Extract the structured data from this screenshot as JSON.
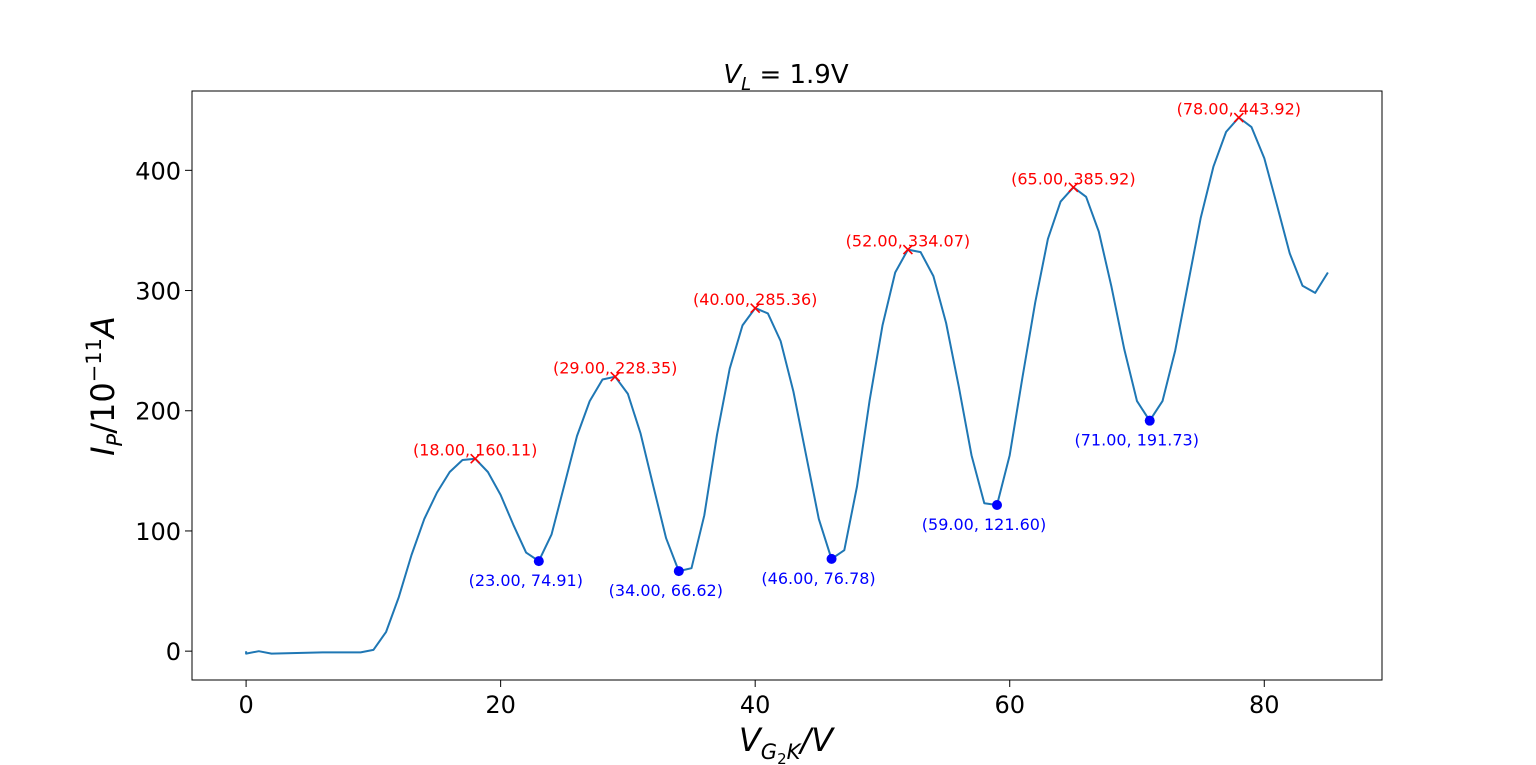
{
  "chart_data": {
    "type": "line",
    "title": "V_L = 1.9V",
    "title_parts": {
      "main": "V",
      "sub": "L",
      "rest": " = 1.9V"
    },
    "xlabel": "V_{G_2K}/V",
    "xlabel_parts": {
      "main": "V",
      "sub": "G",
      "subsub": "2",
      "sub2": "K",
      "rest": "/V"
    },
    "ylabel": "I_P/10^{-11}A",
    "ylabel_parts": {
      "main": "I",
      "sub": "P",
      "mid": "/10",
      "sup": "−11",
      "rest": "A"
    },
    "xlim": [
      -4.25,
      89.25
    ],
    "ylim": [
      -24,
      466
    ],
    "xticks": [
      0,
      20,
      40,
      60,
      80
    ],
    "xtick_labels": [
      "0",
      "20",
      "40",
      "60",
      "80"
    ],
    "yticks": [
      0,
      100,
      200,
      300,
      400
    ],
    "ytick_labels": [
      "0",
      "100",
      "200",
      "300",
      "400"
    ],
    "grid": false,
    "line_color": "#1f77b4",
    "peak_color": "#ff0000",
    "valley_color": "#0000ff",
    "series": [
      {
        "x": [
          0,
          0,
          1,
          2,
          4,
          6,
          8,
          9,
          10,
          11,
          12,
          13,
          14,
          15,
          16,
          17,
          18,
          19,
          20,
          21,
          22,
          23,
          24,
          25,
          26,
          27,
          28,
          29,
          30,
          31,
          32,
          33,
          34,
          35,
          36,
          37,
          38,
          39,
          40,
          41,
          42,
          43,
          44,
          45,
          46,
          47,
          48,
          49,
          50,
          51,
          52,
          53,
          54,
          55,
          56,
          57,
          58,
          59,
          60,
          61,
          62,
          63,
          64,
          65,
          66,
          67,
          68,
          69,
          70,
          71,
          72,
          73,
          74,
          75,
          76,
          77,
          78,
          79,
          80,
          81,
          82,
          83,
          84,
          85
        ],
        "y": [
          0,
          -2,
          0,
          -2,
          -1.5,
          -1,
          -1,
          -1,
          1,
          16,
          45,
          80,
          110,
          132,
          149,
          159,
          160.11,
          149,
          130,
          105,
          82,
          74.91,
          97,
          138,
          179,
          208,
          226,
          228.35,
          214,
          181,
          137,
          94,
          66.62,
          69,
          113,
          180,
          235,
          271,
          285.36,
          281,
          258,
          216,
          163,
          110,
          76.78,
          84,
          137,
          209,
          271,
          315,
          334.07,
          332,
          312,
          273,
          220,
          163,
          123,
          121.6,
          163,
          228,
          290,
          343,
          374,
          385.92,
          378,
          349,
          303,
          251,
          208,
          191.73,
          208,
          250,
          305,
          360,
          403,
          432,
          443.92,
          436,
          410,
          371,
          331,
          304,
          298,
          315
        ]
      }
    ],
    "peaks": [
      {
        "x": 18,
        "y": 160.11,
        "label": "(18.00, 160.11)"
      },
      {
        "x": 29,
        "y": 228.35,
        "label": "(29.00, 228.35)"
      },
      {
        "x": 40,
        "y": 285.36,
        "label": "(40.00, 285.36)"
      },
      {
        "x": 52,
        "y": 334.07,
        "label": "(52.00, 334.07)"
      },
      {
        "x": 65,
        "y": 385.92,
        "label": "(65.00, 385.92)"
      },
      {
        "x": 78,
        "y": 443.92,
        "label": "(78.00, 443.92)"
      }
    ],
    "valleys": [
      {
        "x": 23,
        "y": 74.91,
        "label": "(23.00, 74.91)"
      },
      {
        "x": 34,
        "y": 66.62,
        "label": "(34.00, 66.62)"
      },
      {
        "x": 46,
        "y": 76.78,
        "label": "(46.00, 76.78)"
      },
      {
        "x": 59,
        "y": 121.6,
        "label": "(59.00, 121.60)"
      },
      {
        "x": 71,
        "y": 191.73,
        "label": "(71.00, 191.73)"
      }
    ]
  }
}
